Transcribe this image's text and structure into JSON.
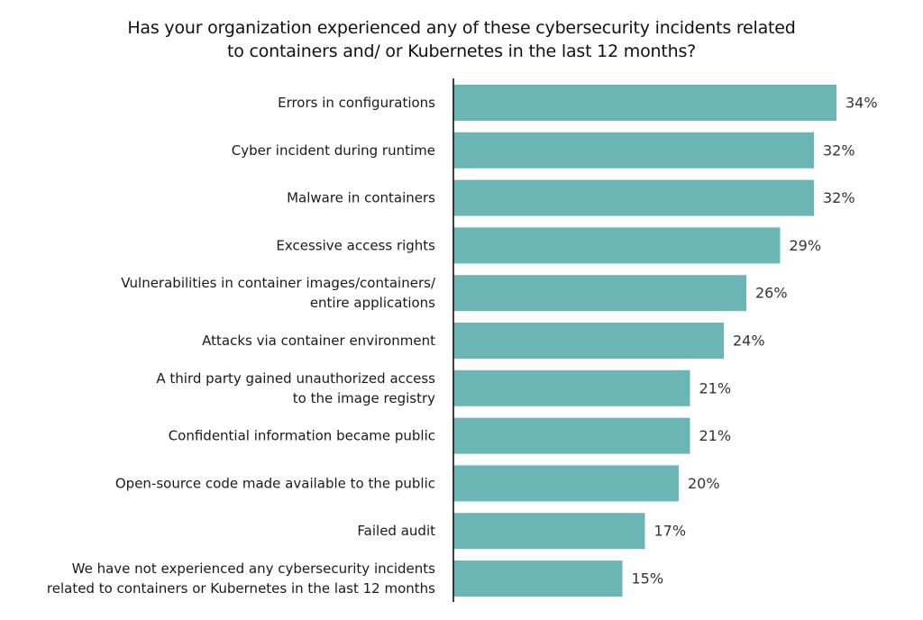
{
  "chart_data": {
    "type": "bar",
    "orientation": "horizontal",
    "title_lines": [
      "Has your organization experienced any of these cybersecurity incidents related",
      "to containers and/ or Kubernetes in the last 12 months?"
    ],
    "categories": [
      [
        "Errors in configurations"
      ],
      [
        "Cyber incident during runtime"
      ],
      [
        "Malware in containers"
      ],
      [
        "Excessive access rights"
      ],
      [
        "Vulnerabilities in container images/containers/",
        "entire applications"
      ],
      [
        "Attacks via container environment"
      ],
      [
        "A third party gained unauthorized access",
        "to the image registry"
      ],
      [
        "Confidential information became public"
      ],
      [
        "Open-source code made available to the public"
      ],
      [
        "Failed audit"
      ],
      [
        "We have not experienced any cybersecurity incidents",
        "related to containers or Kubernetes in the last 12 months"
      ]
    ],
    "values": [
      34,
      32,
      32,
      29,
      26,
      24,
      21,
      21,
      20,
      17,
      15
    ],
    "value_labels": [
      "34%",
      "32%",
      "32%",
      "29%",
      "26%",
      "24%",
      "21%",
      "21%",
      "20%",
      "17%",
      "15%"
    ],
    "unit": "%",
    "xlim": [
      0,
      34
    ],
    "grid": false,
    "bar_color": "#6bb5b5",
    "axis_color": "#111111"
  }
}
